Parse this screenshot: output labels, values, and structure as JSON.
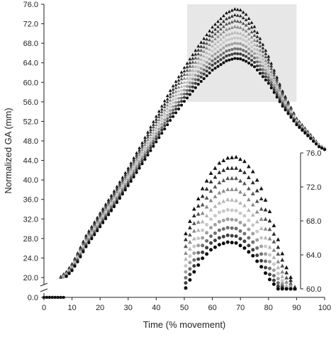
{
  "chart_data": {
    "type": "scatter",
    "title": "",
    "xlabel": "Time (% movement)",
    "ylabel": "Normalized GA (mm)",
    "xlim": [
      0,
      100
    ],
    "ylim": [
      0,
      76
    ],
    "y_axis_break": true,
    "grid": false,
    "legend": "none",
    "x_ticks": [
      "0",
      "10",
      "20",
      "30",
      "40",
      "50",
      "60",
      "70",
      "80",
      "90",
      "100"
    ],
    "y_ticks": [
      "0.0",
      "20.0",
      "24.0",
      "28.0",
      "32.0",
      "36.0",
      "40.0",
      "44.0",
      "48.0",
      "52.0",
      "56.0",
      "60.0",
      "64.0",
      "68.0",
      "72.0",
      "76.0"
    ],
    "highlight_region": {
      "x": [
        51,
        90
      ],
      "y": [
        56,
        76
      ],
      "fill": "#e3e3e3"
    },
    "series_style": {
      "markers": [
        "triangle",
        "triangle",
        "triangle",
        "triangle",
        "triangle",
        "circle",
        "circle",
        "circle",
        "circle",
        "circle"
      ],
      "colors": [
        "#111111",
        "#2b2b2b",
        "#555555",
        "#8a8a8a",
        "#b5b5b5",
        "#c8c8c8",
        "#a0a0a0",
        "#707070",
        "#3e3e3e",
        "#0b0b0b"
      ]
    },
    "main_curves": {
      "x": [
        0,
        2,
        4,
        6,
        8,
        10,
        12,
        15,
        20,
        25,
        30,
        35,
        40,
        45,
        50,
        55,
        60,
        65,
        68,
        70,
        72,
        75,
        80,
        85,
        90,
        93,
        96,
        98,
        100
      ],
      "series": [
        {
          "values": [
            19.5,
            19.5,
            19.6,
            20.2,
            21.2,
            22.8,
            25.0,
            28.6,
            33.2,
            37.7,
            42.4,
            47.6,
            53.0,
            58.3,
            63.0,
            67.4,
            71.3,
            74.2,
            75.0,
            74.8,
            73.9,
            71.4,
            65.3,
            58.2,
            52.6,
            50.6,
            48.6,
            47.2,
            46.5
          ]
        },
        {
          "values": [
            19.4,
            19.4,
            19.5,
            20.1,
            21.1,
            22.6,
            24.8,
            28.3,
            32.9,
            37.3,
            42.0,
            47.1,
            52.4,
            57.6,
            62.3,
            66.6,
            70.3,
            73.0,
            73.8,
            73.6,
            72.8,
            70.5,
            64.7,
            57.9,
            52.5,
            50.5,
            48.5,
            47.2,
            46.5
          ]
        },
        {
          "values": [
            19.4,
            19.4,
            19.5,
            20.0,
            21.0,
            22.5,
            24.6,
            28.1,
            32.6,
            37.0,
            41.6,
            46.7,
            51.9,
            57.0,
            61.6,
            65.8,
            69.4,
            71.9,
            72.6,
            72.4,
            71.7,
            69.6,
            64.1,
            57.6,
            52.4,
            50.4,
            48.4,
            47.1,
            46.5
          ]
        },
        {
          "values": [
            19.3,
            19.3,
            19.4,
            19.9,
            20.8,
            22.3,
            24.4,
            27.8,
            32.2,
            36.6,
            41.2,
            46.2,
            51.3,
            56.3,
            60.8,
            64.9,
            68.4,
            70.8,
            71.4,
            71.2,
            70.5,
            68.6,
            63.4,
            57.2,
            52.3,
            50.3,
            48.3,
            47.1,
            46.4
          ]
        },
        {
          "values": [
            19.3,
            19.3,
            19.4,
            19.8,
            20.7,
            22.1,
            24.2,
            27.5,
            31.9,
            36.2,
            40.8,
            45.7,
            50.7,
            55.6,
            60.0,
            64.0,
            67.4,
            69.7,
            70.2,
            70.0,
            69.4,
            67.7,
            62.8,
            56.9,
            52.1,
            50.2,
            48.3,
            47.0,
            46.4
          ]
        },
        {
          "values": [
            19.2,
            19.2,
            19.3,
            19.7,
            20.6,
            22.0,
            24.0,
            27.3,
            31.6,
            35.9,
            40.4,
            45.2,
            50.1,
            54.9,
            59.2,
            63.1,
            66.4,
            68.6,
            69.1,
            69.0,
            68.4,
            66.8,
            62.2,
            56.6,
            52.0,
            50.1,
            48.2,
            47.0,
            46.4
          ]
        },
        {
          "values": [
            19.2,
            19.2,
            19.3,
            19.6,
            20.5,
            21.8,
            23.8,
            27.0,
            31.3,
            35.5,
            40.0,
            44.7,
            49.5,
            54.2,
            58.4,
            62.2,
            65.4,
            67.5,
            68.0,
            67.9,
            67.3,
            65.9,
            61.6,
            56.2,
            51.8,
            50.0,
            48.1,
            46.9,
            46.3
          ]
        },
        {
          "values": [
            19.1,
            19.1,
            19.2,
            19.5,
            20.4,
            21.7,
            23.6,
            26.8,
            31.0,
            35.2,
            39.6,
            44.2,
            48.9,
            53.5,
            57.6,
            61.3,
            64.4,
            66.4,
            66.9,
            66.8,
            66.3,
            65.0,
            61.0,
            55.8,
            51.7,
            49.9,
            48.0,
            46.9,
            46.3
          ]
        },
        {
          "values": [
            19.1,
            19.1,
            19.2,
            19.5,
            20.3,
            21.5,
            23.4,
            26.5,
            30.7,
            34.8,
            39.2,
            43.8,
            48.4,
            52.9,
            56.9,
            60.5,
            63.5,
            65.4,
            65.9,
            65.8,
            65.3,
            64.1,
            60.4,
            55.5,
            51.5,
            49.8,
            48.0,
            46.8,
            46.3
          ]
        },
        {
          "values": [
            19.0,
            19.0,
            19.1,
            19.4,
            20.2,
            21.4,
            23.2,
            26.3,
            30.4,
            34.5,
            38.8,
            43.3,
            47.8,
            52.2,
            56.1,
            59.6,
            62.5,
            64.4,
            64.9,
            64.8,
            64.3,
            63.2,
            59.8,
            55.1,
            51.3,
            49.6,
            47.9,
            46.8,
            46.2
          ]
        }
      ]
    },
    "inset": {
      "x": [
        51,
        54,
        57,
        60,
        63,
        66,
        69,
        72,
        75,
        78,
        81,
        84,
        87,
        90
      ],
      "ylim": [
        60,
        76
      ],
      "ticks": [
        "60.0",
        "64.0",
        "68.0",
        "72.0",
        "76.0"
      ],
      "series": [
        {
          "values": [
            66.5,
            69.4,
            71.8,
            73.6,
            74.8,
            75.4,
            75.5,
            75.0,
            73.8,
            71.8,
            69.1,
            65.8,
            62.5,
            60.2
          ]
        },
        {
          "values": [
            65.8,
            68.6,
            70.9,
            72.6,
            73.7,
            74.2,
            74.2,
            73.7,
            72.5,
            70.6,
            68.0,
            64.9,
            61.9,
            60.1
          ]
        },
        {
          "values": [
            65.0,
            67.7,
            69.9,
            71.5,
            72.5,
            73.0,
            73.0,
            72.4,
            71.2,
            69.4,
            67.0,
            64.1,
            61.3,
            60.0
          ]
        },
        {
          "values": [
            64.2,
            66.8,
            68.9,
            70.4,
            71.3,
            71.7,
            71.7,
            71.1,
            69.9,
            68.2,
            65.9,
            63.2,
            60.8,
            60.0
          ]
        },
        {
          "values": [
            63.5,
            65.9,
            67.9,
            69.3,
            70.1,
            70.5,
            70.4,
            69.8,
            68.7,
            67.1,
            64.9,
            62.5,
            60.4,
            60.0
          ]
        },
        {
          "values": [
            62.7,
            65.0,
            66.9,
            68.2,
            69.0,
            69.3,
            69.2,
            68.6,
            67.5,
            66.0,
            64.0,
            61.8,
            60.1,
            60.0
          ]
        },
        {
          "values": [
            62.0,
            64.2,
            66.0,
            67.2,
            67.9,
            68.2,
            68.1,
            67.5,
            66.5,
            65.0,
            63.2,
            61.2,
            60.0,
            60.0
          ]
        },
        {
          "values": [
            61.3,
            63.4,
            65.1,
            66.2,
            66.9,
            67.2,
            67.1,
            66.5,
            65.5,
            64.1,
            62.4,
            60.7,
            60.0,
            60.0
          ]
        },
        {
          "values": [
            60.7,
            62.7,
            64.3,
            65.4,
            66.0,
            66.3,
            66.2,
            65.6,
            64.6,
            63.3,
            61.7,
            60.3,
            60.0,
            60.0
          ]
        },
        {
          "values": [
            60.1,
            62.0,
            63.6,
            64.6,
            65.2,
            65.5,
            65.4,
            64.8,
            63.9,
            62.6,
            61.1,
            60.0,
            60.0,
            60.0
          ]
        }
      ]
    }
  }
}
